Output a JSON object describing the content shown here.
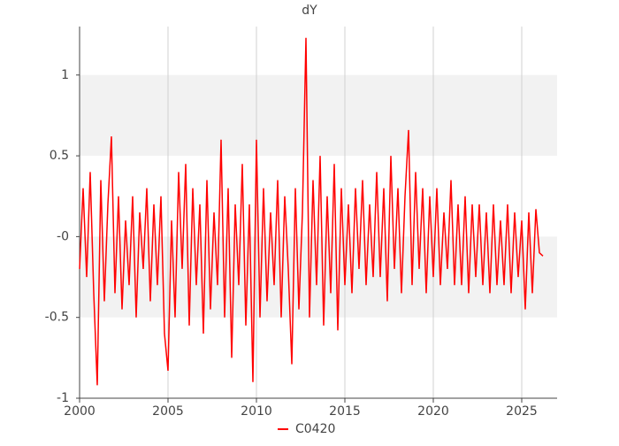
{
  "chart_data": {
    "type": "line",
    "title": "dY",
    "x": [
      2000.0,
      2000.2,
      2000.4,
      2000.6,
      2000.8,
      2001.0,
      2001.2,
      2001.4,
      2001.6,
      2001.8,
      2002.0,
      2002.2,
      2002.4,
      2002.6,
      2002.8,
      2003.0,
      2003.2,
      2003.4,
      2003.6,
      2003.8,
      2004.0,
      2004.2,
      2004.4,
      2004.6,
      2004.8,
      2005.0,
      2005.2,
      2005.4,
      2005.6,
      2005.8,
      2006.0,
      2006.2,
      2006.4,
      2006.6,
      2006.8,
      2007.0,
      2007.2,
      2007.4,
      2007.6,
      2007.8,
      2008.0,
      2008.2,
      2008.4,
      2008.6,
      2008.8,
      2009.0,
      2009.2,
      2009.4,
      2009.6,
      2009.8,
      2010.0,
      2010.2,
      2010.4,
      2010.6,
      2010.8,
      2011.0,
      2011.2,
      2011.4,
      2011.6,
      2011.8,
      2012.0,
      2012.2,
      2012.4,
      2012.6,
      2012.8,
      2013.0,
      2013.2,
      2013.4,
      2013.6,
      2013.8,
      2014.0,
      2014.2,
      2014.4,
      2014.6,
      2014.8,
      2015.0,
      2015.2,
      2015.4,
      2015.6,
      2015.8,
      2016.0,
      2016.2,
      2016.4,
      2016.6,
      2016.8,
      2017.0,
      2017.2,
      2017.4,
      2017.6,
      2017.8,
      2018.0,
      2018.2,
      2018.4,
      2018.6,
      2018.8,
      2019.0,
      2019.2,
      2019.4,
      2019.6,
      2019.8,
      2020.0,
      2020.2,
      2020.4,
      2020.6,
      2020.8,
      2021.0,
      2021.2,
      2021.4,
      2021.6,
      2021.8,
      2022.0,
      2022.2,
      2022.4,
      2022.6,
      2022.8,
      2023.0,
      2023.2,
      2023.4,
      2023.6,
      2023.8,
      2024.0,
      2024.2,
      2024.4,
      2024.6,
      2024.8,
      2025.0,
      2025.2,
      2025.4,
      2025.6,
      2025.8,
      2026.0,
      2026.2
    ],
    "series": [
      {
        "name": "C0420",
        "color": "#ff0000",
        "values": [
          -0.2,
          0.3,
          -0.25,
          0.4,
          -0.35,
          -0.92,
          0.35,
          -0.4,
          0.2,
          0.62,
          -0.35,
          0.25,
          -0.45,
          0.1,
          -0.3,
          0.25,
          -0.5,
          0.15,
          -0.2,
          0.3,
          -0.4,
          0.2,
          -0.3,
          0.25,
          -0.6,
          -0.83,
          0.1,
          -0.5,
          0.4,
          -0.2,
          0.45,
          -0.55,
          0.3,
          -0.3,
          0.2,
          -0.6,
          0.35,
          -0.45,
          0.15,
          -0.3,
          0.6,
          -0.5,
          0.3,
          -0.75,
          0.2,
          -0.3,
          0.45,
          -0.55,
          0.2,
          -0.9,
          0.6,
          -0.5,
          0.3,
          -0.4,
          0.15,
          -0.3,
          0.35,
          -0.5,
          0.25,
          -0.2,
          -0.79,
          0.3,
          -0.45,
          0.15,
          1.23,
          -0.5,
          0.35,
          -0.3,
          0.5,
          -0.55,
          0.25,
          -0.35,
          0.45,
          -0.58,
          0.3,
          -0.3,
          0.2,
          -0.35,
          0.3,
          -0.2,
          0.35,
          -0.3,
          0.2,
          -0.25,
          0.4,
          -0.25,
          0.3,
          -0.4,
          0.5,
          -0.2,
          0.3,
          -0.35,
          0.25,
          0.66,
          -0.3,
          0.4,
          -0.2,
          0.3,
          -0.35,
          0.25,
          -0.25,
          0.3,
          -0.3,
          0.15,
          -0.2,
          0.35,
          -0.3,
          0.2,
          -0.3,
          0.25,
          -0.35,
          0.2,
          -0.25,
          0.2,
          -0.3,
          0.15,
          -0.35,
          0.2,
          -0.3,
          0.1,
          -0.3,
          0.2,
          -0.35,
          0.15,
          -0.25,
          0.1,
          -0.45,
          0.15,
          -0.35,
          0.17,
          -0.1,
          -0.12
        ]
      }
    ],
    "xlim": [
      2000,
      2027
    ],
    "xticks": [
      2000,
      2005,
      2010,
      2015,
      2020,
      2025
    ],
    "ylim": [
      -1,
      1.3
    ],
    "yticks": [
      -1,
      {
        "value": -0.5,
        "label": "-0.5"
      },
      {
        "value": 0,
        "label": "-0"
      },
      0.5,
      1
    ],
    "grid": true,
    "legend": "bottom"
  }
}
